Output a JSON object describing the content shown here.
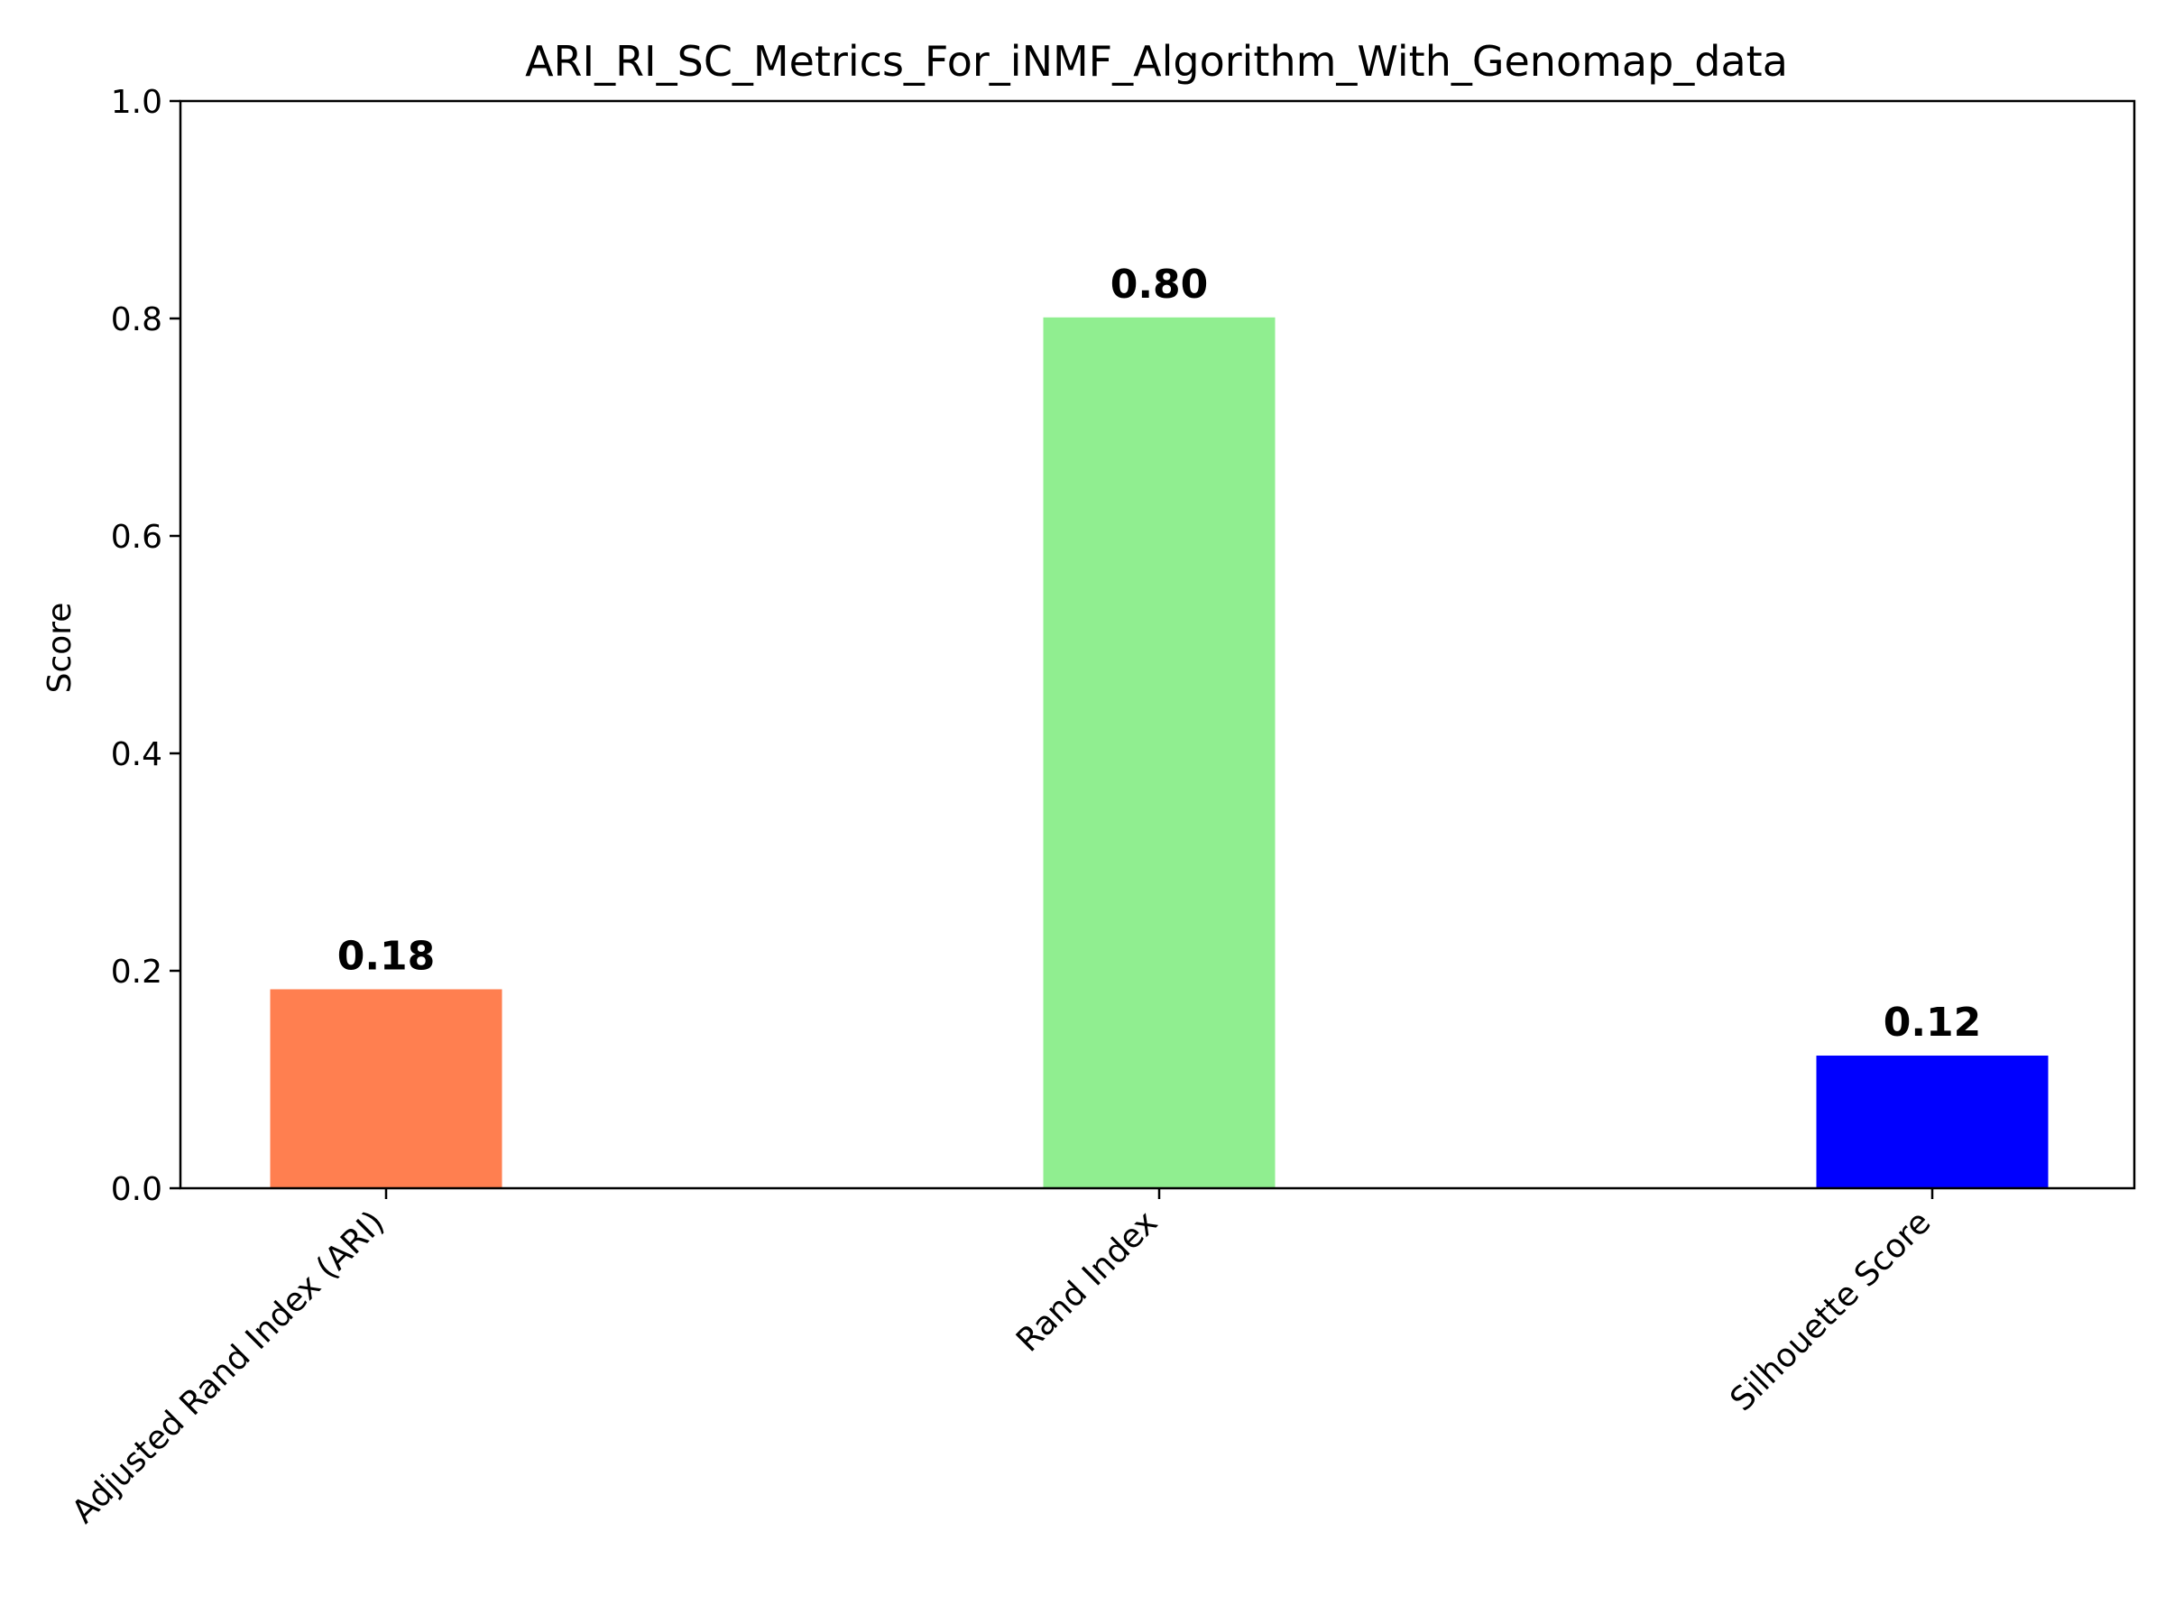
{
  "chart_data": {
    "type": "bar",
    "title": "ARI_RI_SC_Metrics_For_iNMF_Algorithm_With_Genomap_data",
    "xlabel": "",
    "ylabel": "Score",
    "ylim": [
      0,
      1.0
    ],
    "yticks": [
      "0.0",
      "0.2",
      "0.4",
      "0.6",
      "0.8",
      "1.0"
    ],
    "grid": false,
    "categories": [
      "Adjusted Rand Index (ARI)",
      "Rand Index",
      "Silhouette Score"
    ],
    "values": [
      0.183,
      0.801,
      0.122
    ],
    "value_labels": [
      "0.18",
      "0.80",
      "0.12"
    ],
    "colors": [
      "#ff7f50",
      "#90ee90",
      "#0000ff"
    ]
  }
}
